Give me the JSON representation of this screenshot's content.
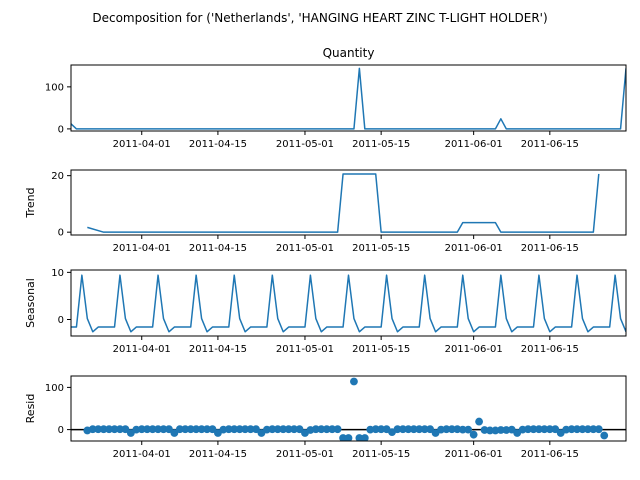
{
  "chart_data": {
    "type": "line",
    "title": "Decomposition for ('Netherlands', 'HANGING HEART ZINC T-LIGHT HOLDER')",
    "x_range": [
      "2011-03-19",
      "2011-06-29"
    ],
    "x_ticks": [
      "2011-04-01",
      "2011-04-15",
      "2011-05-01",
      "2011-05-15",
      "2011-06-01",
      "2011-06-15"
    ],
    "series_color": "#1f77b4",
    "panels": [
      {
        "key": "observed",
        "kind": "line",
        "title": "Quantity",
        "ylabel": "",
        "ylim": [
          -5,
          152
        ],
        "y_ticks": [
          0,
          100
        ],
        "x": [
          "2011-03-19",
          "2011-03-20",
          "2011-05-10",
          "2011-05-11",
          "2011-05-12",
          "2011-06-05",
          "2011-06-06",
          "2011-06-07",
          "2011-06-28",
          "2011-06-29"
        ],
        "values": [
          12,
          0,
          0,
          144,
          0,
          0,
          24,
          0,
          0,
          144
        ]
      },
      {
        "key": "trend",
        "kind": "line",
        "title": "",
        "ylabel": "Trend",
        "ylim": [
          -1,
          22
        ],
        "y_ticks": [
          0,
          20
        ],
        "x": [
          "2011-03-22",
          "2011-03-25",
          "2011-05-07",
          "2011-05-08",
          "2011-05-14",
          "2011-05-15",
          "2011-05-29",
          "2011-05-30",
          "2011-06-05",
          "2011-06-06",
          "2011-06-23",
          "2011-06-24"
        ],
        "values": [
          1.7,
          0,
          0,
          20.6,
          20.6,
          0,
          0,
          3.4,
          3.4,
          0,
          0,
          20.6
        ]
      },
      {
        "key": "seasonal",
        "kind": "line",
        "title": "",
        "ylabel": "Seasonal",
        "ylim": [
          -3.5,
          10.5
        ],
        "y_ticks": [
          0,
          10
        ],
        "period_start": "2011-03-19",
        "period_values": [
          -1.6,
          -1.6,
          9.4,
          0.2,
          -2.6,
          -1.6,
          -1.6
        ]
      },
      {
        "key": "resid",
        "kind": "scatter",
        "title": "",
        "ylabel": "Resid",
        "ylim": [
          -27,
          127
        ],
        "y_ticks": [
          0,
          100
        ],
        "baseline": 0,
        "x_start": "2011-03-22",
        "values": [
          -2,
          1,
          1,
          1,
          1,
          1,
          1,
          1,
          -8,
          0,
          1,
          1,
          1,
          1,
          1,
          1,
          -8,
          1,
          1,
          1,
          1,
          1,
          1,
          1,
          -8,
          0,
          1,
          1,
          1,
          1,
          1,
          1,
          -8,
          0,
          1,
          1,
          1,
          1,
          1,
          1,
          -8,
          -1,
          1,
          1,
          1,
          1,
          1,
          -20,
          -20,
          114,
          -20,
          -20,
          0,
          1,
          1,
          1,
          -6,
          1,
          1,
          1,
          1,
          1,
          1,
          1,
          -8,
          0,
          1,
          1,
          1,
          0,
          0,
          -12,
          19,
          -1,
          -2,
          -2,
          -1,
          -1,
          0,
          -8,
          0,
          1,
          1,
          1,
          1,
          1,
          1,
          -8,
          0,
          1,
          1,
          1,
          1,
          1,
          1,
          -14
        ]
      }
    ]
  }
}
